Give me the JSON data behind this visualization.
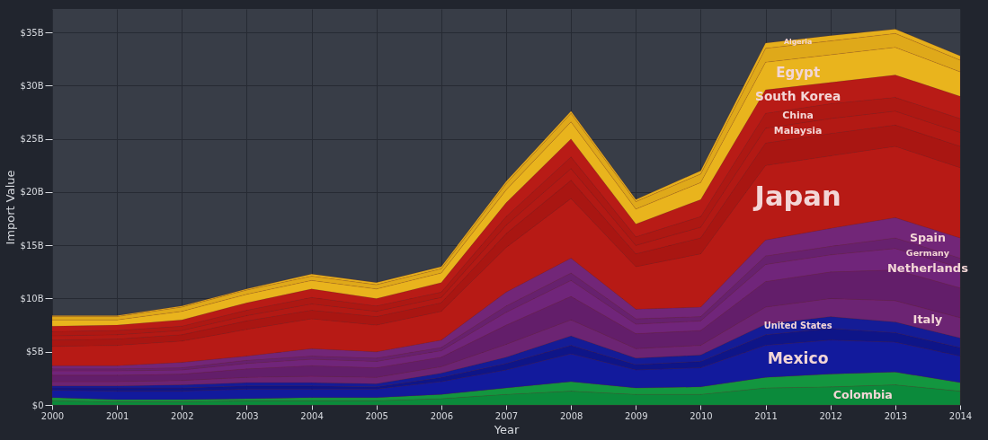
{
  "chart_data": {
    "type": "area",
    "stacked": true,
    "xlabel": "Year",
    "ylabel": "Import Value",
    "x": [
      2000,
      2001,
      2002,
      2003,
      2004,
      2005,
      2006,
      2007,
      2008,
      2009,
      2010,
      2011,
      2012,
      2013,
      2014
    ],
    "xlim": [
      2000,
      2014
    ],
    "xticks": [
      2000,
      2001,
      2002,
      2003,
      2004,
      2005,
      2006,
      2007,
      2008,
      2009,
      2010,
      2011,
      2012,
      2013,
      2014
    ],
    "ylim": [
      0,
      37.2
    ],
    "yticks": [
      {
        "value": 0,
        "label": "$0"
      },
      {
        "value": 5,
        "label": "$5B"
      },
      {
        "value": 10,
        "label": "$10B"
      },
      {
        "value": 15,
        "label": "$15B"
      },
      {
        "value": 20,
        "label": "$20B"
      },
      {
        "value": 25,
        "label": "$25B"
      },
      {
        "value": 30,
        "label": "$30B"
      },
      {
        "value": 35,
        "label": "$35B"
      }
    ],
    "grid": true,
    "series": [
      {
        "name": "Colombia",
        "color": "#0b8a3b",
        "values": [
          0.4,
          0.3,
          0.3,
          0.4,
          0.4,
          0.4,
          0.6,
          1.0,
          1.3,
          1.0,
          1.0,
          1.6,
          1.7,
          1.9,
          1.3
        ]
      },
      {
        "color": "#13963f",
        "values": [
          0.3,
          0.2,
          0.2,
          0.2,
          0.3,
          0.3,
          0.4,
          0.6,
          0.9,
          0.6,
          0.7,
          1.0,
          1.2,
          1.2,
          0.8
        ]
      },
      {
        "name": "Mexico",
        "color": "#121a9c",
        "values": [
          0.7,
          0.8,
          0.8,
          0.9,
          0.8,
          0.8,
          1.2,
          1.7,
          2.6,
          1.7,
          1.8,
          3.0,
          3.2,
          2.8,
          2.5
        ]
      },
      {
        "color": "#0e1588",
        "values": [
          0.2,
          0.3,
          0.3,
          0.3,
          0.3,
          0.2,
          0.4,
          0.6,
          0.8,
          0.5,
          0.6,
          1.0,
          1.1,
          0.9,
          0.8
        ]
      },
      {
        "name": "United States",
        "color": "#141c96",
        "values": [
          0.2,
          0.2,
          0.3,
          0.3,
          0.3,
          0.3,
          0.4,
          0.6,
          0.9,
          0.6,
          0.6,
          1.0,
          1.1,
          1.0,
          0.9
        ]
      },
      {
        "name": "Italy",
        "color": "#6c2473",
        "values": [
          0.4,
          0.4,
          0.4,
          0.5,
          0.6,
          0.6,
          0.6,
          1.2,
          1.5,
          0.9,
          0.9,
          1.6,
          1.7,
          2.0,
          1.9
        ]
      },
      {
        "color": "#631e6a",
        "values": [
          0.6,
          0.6,
          0.6,
          0.8,
          1.0,
          0.9,
          0.9,
          1.8,
          2.2,
          1.4,
          1.4,
          2.4,
          2.5,
          2.9,
          2.8
        ]
      },
      {
        "name": "Netherlands",
        "color": "#70257a",
        "values": [
          0.4,
          0.4,
          0.4,
          0.5,
          0.6,
          0.6,
          0.6,
          1.2,
          1.5,
          0.9,
          0.9,
          1.6,
          1.6,
          2.0,
          1.9
        ]
      },
      {
        "name": "Germany",
        "color": "#67216e",
        "values": [
          0.2,
          0.2,
          0.2,
          0.3,
          0.3,
          0.3,
          0.3,
          0.6,
          0.7,
          0.5,
          0.4,
          0.8,
          0.8,
          1.0,
          0.9
        ]
      },
      {
        "name": "Spain",
        "color": "#722678",
        "values": [
          0.3,
          0.3,
          0.5,
          0.4,
          0.7,
          0.6,
          0.7,
          1.3,
          1.4,
          0.9,
          0.9,
          1.5,
          1.7,
          1.9,
          1.9
        ]
      },
      {
        "name": "Japan",
        "color": "#b71a15",
        "values": [
          1.8,
          1.9,
          2.0,
          2.5,
          2.8,
          2.5,
          2.7,
          4.2,
          5.6,
          4.0,
          5.0,
          7.0,
          6.8,
          6.7,
          6.6
        ]
      },
      {
        "color": "#a91612",
        "values": [
          0.6,
          0.6,
          0.6,
          0.8,
          0.8,
          0.8,
          0.8,
          1.3,
          1.7,
          1.2,
          1.5,
          2.1,
          2.1,
          2.0,
          2.0
        ]
      },
      {
        "name": "Malaysia",
        "color": "#b21914",
        "values": [
          0.4,
          0.4,
          0.4,
          0.5,
          0.6,
          0.5,
          0.5,
          0.8,
          1.1,
          0.8,
          1.0,
          1.4,
          1.4,
          1.3,
          1.3
        ]
      },
      {
        "name": "China",
        "color": "#ad1813",
        "values": [
          0.4,
          0.4,
          0.4,
          0.5,
          0.6,
          0.5,
          0.5,
          0.8,
          1.1,
          0.8,
          1.0,
          1.4,
          1.4,
          1.3,
          1.3
        ]
      },
      {
        "name": "South Korea",
        "color": "#b81b16",
        "values": [
          0.5,
          0.5,
          0.6,
          0.7,
          0.8,
          0.7,
          0.9,
          1.3,
          1.7,
          1.2,
          1.6,
          2.2,
          2.0,
          2.1,
          2.1
        ]
      },
      {
        "name": "Egypt",
        "color": "#e9b41d",
        "values": [
          0.6,
          0.5,
          0.8,
          0.8,
          0.8,
          0.9,
          0.9,
          1.2,
          1.6,
          1.4,
          1.6,
          2.6,
          2.6,
          2.6,
          2.3
        ]
      },
      {
        "color": "#dfa91a",
        "values": [
          0.3,
          0.3,
          0.4,
          0.4,
          0.4,
          0.4,
          0.4,
          0.6,
          0.8,
          0.7,
          0.8,
          1.3,
          1.3,
          1.3,
          1.1
        ]
      },
      {
        "name": "Algeria",
        "color": "#e5af1c",
        "values": [
          0.1,
          0.1,
          0.1,
          0.1,
          0.2,
          0.2,
          0.2,
          0.2,
          0.2,
          0.2,
          0.3,
          0.5,
          0.5,
          0.4,
          0.4
        ]
      }
    ]
  }
}
